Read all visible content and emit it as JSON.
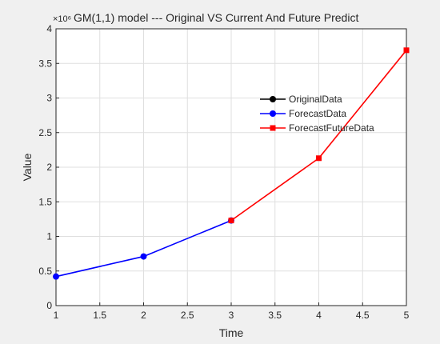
{
  "chart_data": {
    "type": "line",
    "title": "GM(1,1) model --- Original VS Current And Future Predict",
    "xlabel": "Time",
    "ylabel": "Value",
    "exponent_label": "×10⁶",
    "xlim": [
      1,
      5
    ],
    "ylim": [
      0,
      4
    ],
    "x_ticks": [
      "1",
      "1.5",
      "2",
      "2.5",
      "3",
      "3.5",
      "4",
      "4.5",
      "5"
    ],
    "y_ticks": [
      "0",
      "0.5",
      "1",
      "1.5",
      "2",
      "2.5",
      "3",
      "3.5",
      "4"
    ],
    "grid": true,
    "legend_position": "center-right",
    "series": [
      {
        "name": "OriginalData",
        "color": "#000000",
        "marker": "circle",
        "x": [],
        "y": []
      },
      {
        "name": "ForecastData",
        "color": "#0000ff",
        "marker": "circle",
        "x": [
          1,
          2,
          3
        ],
        "y": [
          0.42,
          0.71,
          1.23
        ]
      },
      {
        "name": "ForecastFutureData",
        "color": "#ff0000",
        "marker": "square",
        "x": [
          3,
          4,
          5
        ],
        "y": [
          1.23,
          2.13,
          3.69
        ]
      }
    ]
  }
}
